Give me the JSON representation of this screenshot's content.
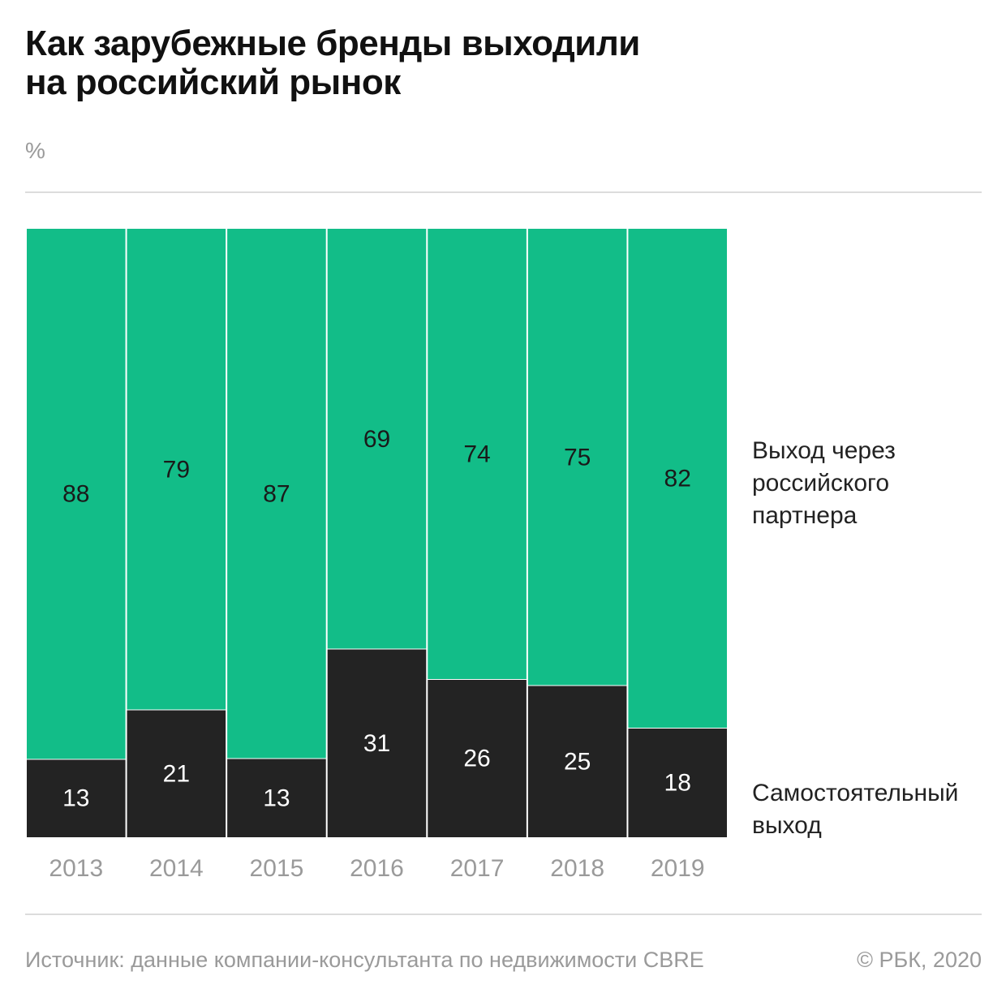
{
  "title": [
    "Как зарубежные бренды выходили",
    "на российский рынок"
  ],
  "unit": "%",
  "legend": {
    "partner": [
      "Выход через",
      "российского",
      "партнера"
    ],
    "self": [
      "Самостоятельный",
      "выход"
    ]
  },
  "source": "Источник: данные компании-консультанта по недвижимости CBRE",
  "copyright": "© РБК, 2020",
  "colors": {
    "partner": "#12bd88",
    "self": "#232323",
    "partner_label": "#1a1a1a",
    "self_label": "#ffffff",
    "axis": "#9a9a9a"
  },
  "chart_data": {
    "type": "bar",
    "stacked": true,
    "categories": [
      "2013",
      "2014",
      "2015",
      "2016",
      "2017",
      "2018",
      "2019"
    ],
    "series": [
      {
        "name": "Самостоятельный выход",
        "values": [
          13,
          21,
          13,
          31,
          26,
          25,
          18
        ]
      },
      {
        "name": "Выход через российского партнера",
        "values": [
          88,
          79,
          87,
          69,
          74,
          75,
          82
        ]
      }
    ],
    "ylabel": "%",
    "grid": false,
    "legend_position": "right"
  }
}
